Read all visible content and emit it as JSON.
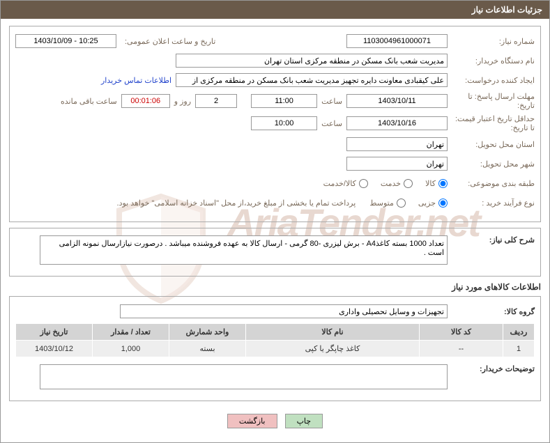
{
  "header": {
    "title": "جزئیات اطلاعات نیاز"
  },
  "fields": {
    "need_number_label": "شماره نیاز:",
    "need_number": "1103004961000071",
    "public_announce_label": "تاریخ و ساعت اعلان عمومی:",
    "public_announce_value": "1403/10/09 - 10:25",
    "buyer_org_label": "نام دستگاه خریدار:",
    "buyer_org_value": "مدیریت شعب بانک مسکن در منطقه مرکزی استان تهران",
    "request_creator_label": "ایجاد کننده درخواست:",
    "request_creator_value": "علی کیقبادی معاونت دایره تجهیز مدیریت شعب بانک مسکن در منطقه مرکزی از",
    "buyer_contact_link": "اطلاعات تماس خریدار",
    "response_deadline_label": "مهلت ارسال پاسخ: تا تاریخ:",
    "response_date": "1403/10/11",
    "time_label": "ساعت",
    "response_time": "11:00",
    "days_count": "2",
    "days_and_label": "روز و",
    "countdown": "00:01:06",
    "remaining_label": "ساعت باقی مانده",
    "price_validity_label": "حداقل تاریخ اعتبار قیمت: تا تاریخ:",
    "price_validity_date": "1403/10/16",
    "price_validity_time": "10:00",
    "delivery_province_label": "استان محل تحویل:",
    "delivery_province": "تهران",
    "delivery_city_label": "شهر محل تحویل:",
    "delivery_city": "تهران",
    "category_label": "طبقه بندی موضوعی:",
    "radio_goods": "کالا",
    "radio_service": "خدمت",
    "radio_goods_service": "کالا/خدمت",
    "purchase_type_label": "نوع فرآیند خرید :",
    "radio_partial": "جزیی",
    "radio_medium": "متوسط",
    "purchase_note": "پرداخت تمام یا بخشی از مبلغ خرید،از محل \"اسناد خزانه اسلامی\" خواهد بود.",
    "general_desc_label": "شرح کلی نیاز:",
    "general_desc_value": "تعداد 1000 بسته کاغذA4 - برش لیزری -80 گرمی - ارسال کالا به عهده فروشنده میباشد . درصورت نیازارسال نمونه الزامی است .",
    "goods_info_title": "اطلاعات کالاهای مورد نیاز",
    "goods_group_label": "گروه کالا:",
    "goods_group_value": "تجهیزات و وسایل تحصیلی واداری",
    "buyer_notes_label": "توضیحات خریدار:",
    "buyer_notes_value": ""
  },
  "table": {
    "headers": {
      "row": "ردیف",
      "code": "کد کالا",
      "name": "نام کالا",
      "unit": "واحد شمارش",
      "qty": "تعداد / مقدار",
      "date": "تاریخ نیاز"
    },
    "rows": [
      {
        "row": "1",
        "code": "--",
        "name": "کاغذ چاپگر یا کپی",
        "unit": "بسته",
        "qty": "1,000",
        "date": "1403/10/12"
      }
    ]
  },
  "buttons": {
    "print": "چاپ",
    "back": "بازگشت"
  },
  "watermark": "AriaTender.net"
}
